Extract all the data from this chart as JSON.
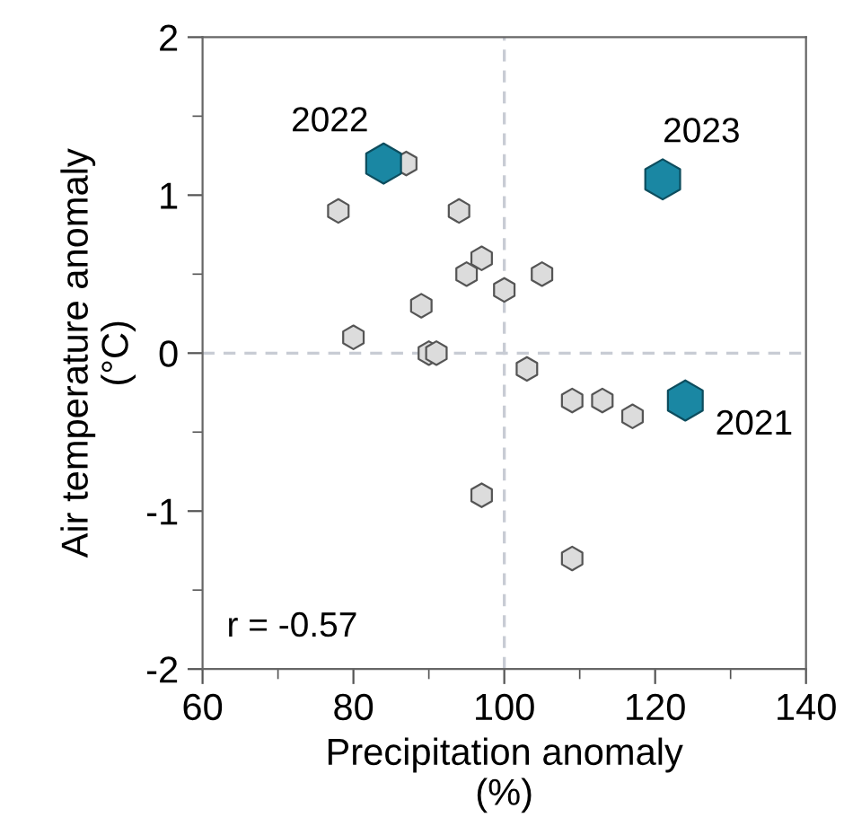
{
  "chart_data": {
    "type": "scatter",
    "xlabel": "Precipitation anomaly\n(%)",
    "ylabel": "Air temperature anomaly\n(°C)",
    "xlim": [
      60,
      140
    ],
    "ylim": [
      -2,
      2
    ],
    "xticks": [
      60,
      {
        "value": 70,
        "label": null
      },
      80,
      {
        "value": 90,
        "label": null
      },
      100,
      {
        "value": 110,
        "label": null
      },
      120,
      {
        "value": 130,
        "label": null
      },
      140
    ],
    "yticks": [
      -2,
      {
        "value": -1.5,
        "label": null
      },
      -1,
      {
        "value": -0.5,
        "label": null
      },
      0,
      {
        "value": 0.5,
        "label": null
      },
      1,
      {
        "value": 1.5,
        "label": null
      },
      2
    ],
    "grid": false,
    "series": [
      {
        "color": "#dcdcdc",
        "x": [
          87,
          78,
          94,
          97,
          95,
          105,
          100,
          89,
          80,
          90,
          91,
          103,
          109,
          113,
          117,
          97,
          109
        ],
        "values": [
          1.2,
          0.9,
          0.9,
          0.6,
          0.5,
          0.5,
          0.4,
          0.3,
          0.1,
          0,
          0,
          -0.1,
          -0.3,
          -0.3,
          -0.4,
          -0.9,
          -1.3
        ]
      },
      {
        "color": "#1a87a3",
        "x": [
          124,
          84,
          121
        ],
        "values": [
          -0.3,
          1.2,
          1.1
        ]
      }
    ],
    "ref_lines": [
      {
        "axis": "x",
        "value": 100,
        "color": "#c8ccd4",
        "line_style": "dashed"
      },
      {
        "axis": "y",
        "value": 0,
        "color": "#c8ccd4",
        "line_style": "dashed"
      }
    ],
    "annotations": [
      {
        "text": "2021",
        "x": 124,
        "y": -0.3
      },
      {
        "text": "2022",
        "x": 84,
        "y": 1.2
      },
      {
        "text": "2023",
        "x": 121,
        "y": 1.1
      },
      "r = -0.57"
    ]
  }
}
